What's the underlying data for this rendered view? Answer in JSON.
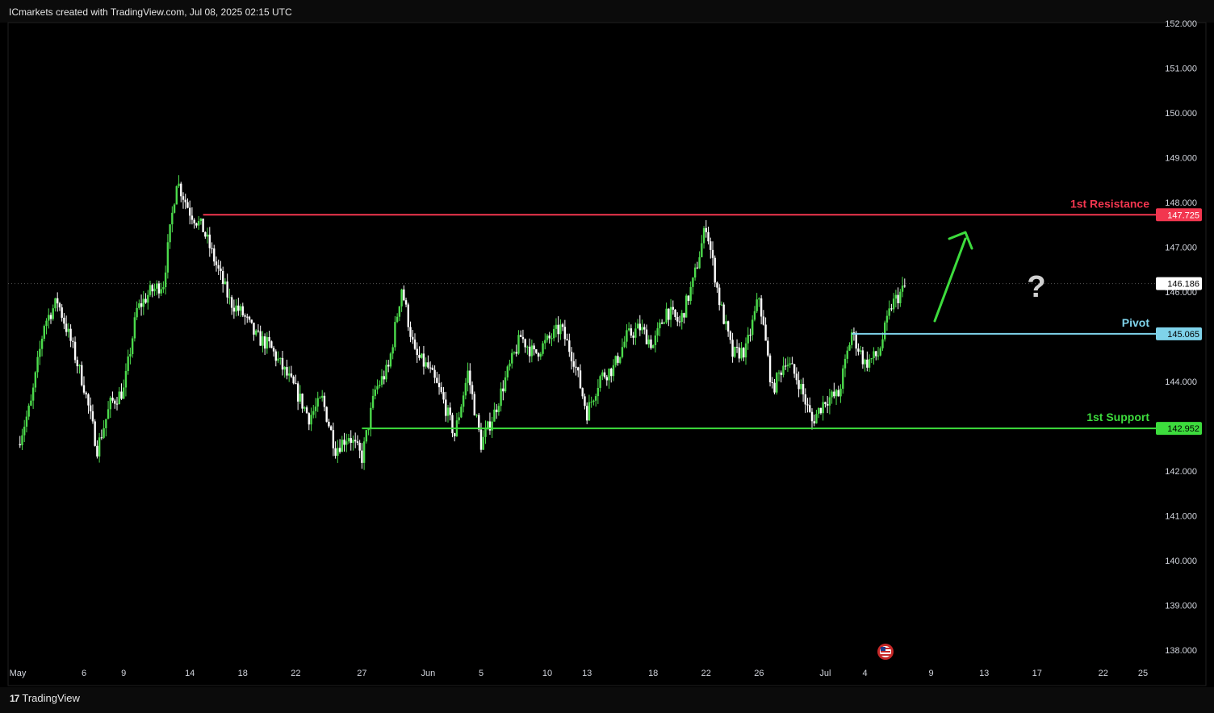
{
  "header": {
    "text": "ICmarkets created with TradingView.com, Jul 08, 2025 02:15 UTC"
  },
  "footer": {
    "brand": "TradingView"
  },
  "colors": {
    "up": "#4cdb4c",
    "down": "#ffffff",
    "resistance": "#f2364f",
    "pivot": "#7fd3ea",
    "support": "#3ddc3d",
    "arrow": "#3ddc3d",
    "axis_text": "#d1d4dc",
    "background": "#000000"
  },
  "chart_data": {
    "type": "candlestick",
    "y_ticks": [
      "152.000",
      "151.000",
      "150.000",
      "149.000",
      "148.000",
      "147.000",
      "146.000",
      "145.000",
      "144.000",
      "143.000",
      "142.000",
      "141.000",
      "140.000",
      "139.000",
      "138.000"
    ],
    "ylim": [
      137.6,
      152.0
    ],
    "x_ticks": [
      {
        "label": "May",
        "day": 0
      },
      {
        "label": "6",
        "day": 5
      },
      {
        "label": "9",
        "day": 8
      },
      {
        "label": "14",
        "day": 13
      },
      {
        "label": "18",
        "day": 17
      },
      {
        "label": "22",
        "day": 21
      },
      {
        "label": "27",
        "day": 26
      },
      {
        "label": "Jun",
        "day": 31
      },
      {
        "label": "5",
        "day": 35
      },
      {
        "label": "10",
        "day": 40
      },
      {
        "label": "13",
        "day": 43
      },
      {
        "label": "18",
        "day": 48
      },
      {
        "label": "22",
        "day": 52
      },
      {
        "label": "26",
        "day": 56
      },
      {
        "label": "Jul",
        "day": 61
      },
      {
        "label": "4",
        "day": 64
      },
      {
        "label": "9",
        "day": 69
      },
      {
        "label": "13",
        "day": 73
      },
      {
        "label": "17",
        "day": 77
      },
      {
        "label": "22",
        "day": 82
      },
      {
        "label": "25",
        "day": 85
      }
    ],
    "levels": [
      {
        "name": "1st Resistance",
        "value": 147.725,
        "label": "147.725",
        "color": "#f2364f",
        "from_day": 14
      },
      {
        "name": "Pivot",
        "value": 145.065,
        "label": "145.065",
        "color": "#7fd3ea",
        "from_day": 63
      },
      {
        "name": "1st Support",
        "value": 142.952,
        "label": "142.952",
        "color": "#3ddc3d",
        "from_day": 26
      }
    ],
    "last_price": {
      "value": 146.186,
      "label": "146.186"
    },
    "price_path": [
      [
        0,
        142.6
      ],
      [
        1,
        143.5
      ],
      [
        2,
        145.3
      ],
      [
        3,
        145.8
      ],
      [
        4,
        144.9
      ],
      [
        5,
        143.9
      ],
      [
        6,
        142.5
      ],
      [
        7,
        143.5
      ],
      [
        8,
        143.8
      ],
      [
        9,
        145.6
      ],
      [
        10,
        146.0
      ],
      [
        11,
        146.2
      ],
      [
        12,
        148.5
      ],
      [
        13,
        147.8
      ],
      [
        14,
        147.4
      ],
      [
        15,
        146.6
      ],
      [
        16,
        145.8
      ],
      [
        17,
        145.5
      ],
      [
        18,
        145.0
      ],
      [
        19,
        144.8
      ],
      [
        20,
        144.3
      ],
      [
        21,
        143.8
      ],
      [
        22,
        143.2
      ],
      [
        23,
        143.6
      ],
      [
        24,
        142.5
      ],
      [
        25,
        142.8
      ],
      [
        26,
        142.3
      ],
      [
        27,
        143.8
      ],
      [
        28,
        144.3
      ],
      [
        29,
        146.1
      ],
      [
        30,
        144.6
      ],
      [
        31,
        144.3
      ],
      [
        32,
        143.7
      ],
      [
        33,
        142.8
      ],
      [
        34,
        144.2
      ],
      [
        35,
        142.6
      ],
      [
        36,
        143.3
      ],
      [
        37,
        144.2
      ],
      [
        38,
        145.0
      ],
      [
        39,
        144.6
      ],
      [
        40,
        144.9
      ],
      [
        41,
        145.2
      ],
      [
        42,
        144.5
      ],
      [
        43,
        143.3
      ],
      [
        44,
        144.1
      ],
      [
        45,
        144.3
      ],
      [
        46,
        145.0
      ],
      [
        47,
        145.2
      ],
      [
        48,
        144.8
      ],
      [
        49,
        145.6
      ],
      [
        50,
        145.3
      ],
      [
        51,
        146.2
      ],
      [
        52,
        147.5
      ],
      [
        53,
        145.8
      ],
      [
        54,
        144.6
      ],
      [
        55,
        144.7
      ],
      [
        56,
        145.9
      ],
      [
        57,
        143.8
      ],
      [
        58,
        144.5
      ],
      [
        59,
        144.0
      ],
      [
        60,
        143.1
      ],
      [
        61,
        143.6
      ],
      [
        62,
        143.7
      ],
      [
        63,
        145.1
      ],
      [
        64,
        144.4
      ],
      [
        65,
        144.6
      ],
      [
        66,
        145.7
      ],
      [
        67,
        146.1
      ]
    ],
    "annotation": {
      "text": "?"
    }
  }
}
